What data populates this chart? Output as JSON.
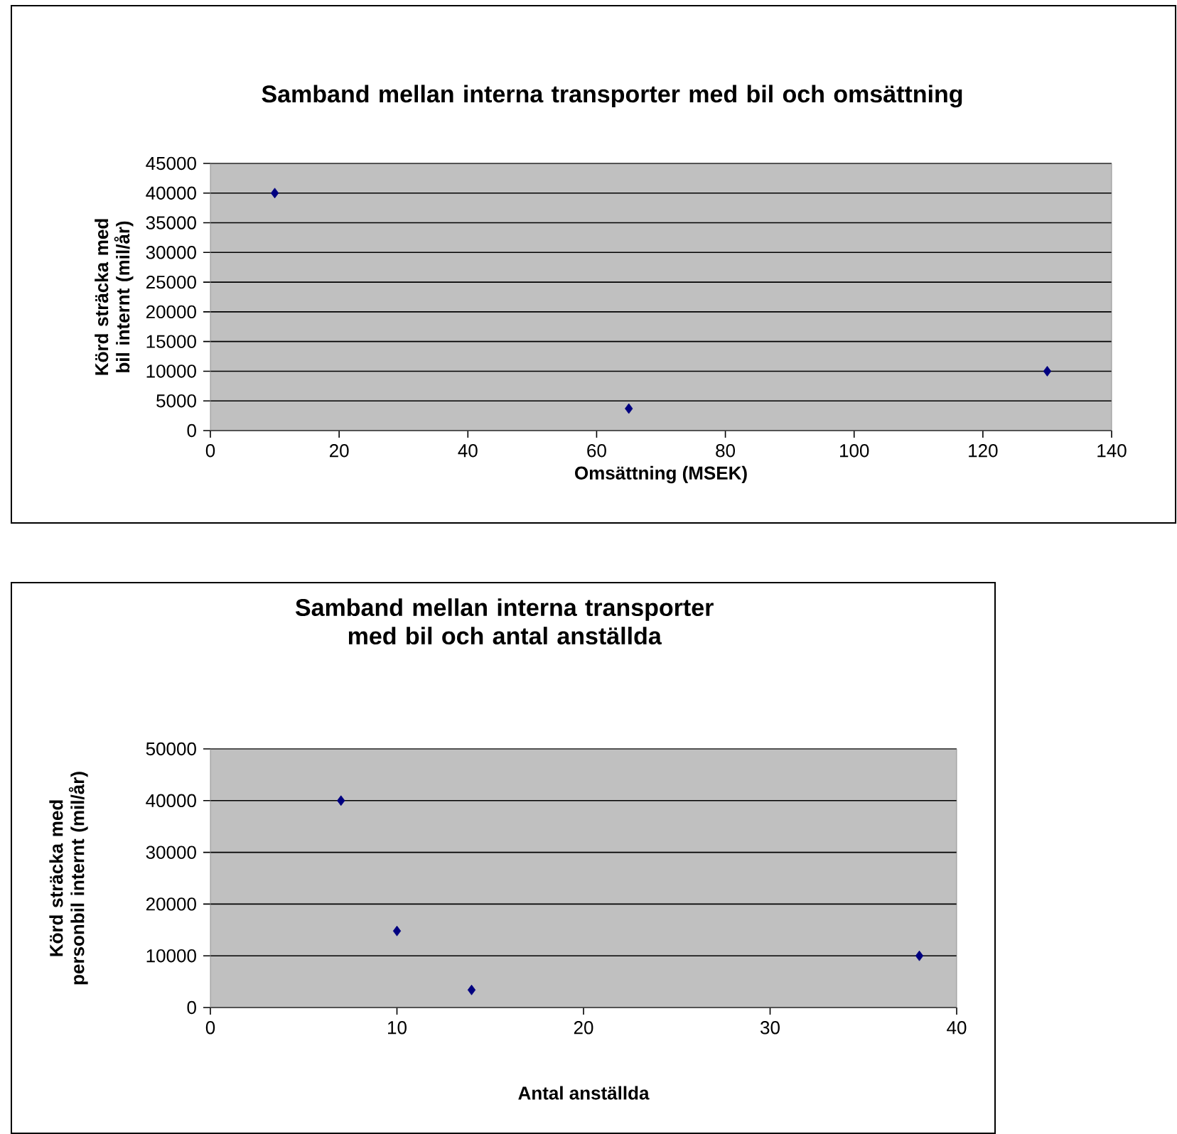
{
  "chart_data": [
    {
      "type": "scatter",
      "title": "Samband mellan interna transporter med bil och omsättning",
      "xlabel": "Omsättning (MSEK)",
      "ylabel": "Körd sträcka med bil internt (mil/år)",
      "x": [
        10,
        65,
        130
      ],
      "values": [
        40000,
        3700,
        10000
      ],
      "color": "#000080",
      "marker": "diamond",
      "xlim": [
        0,
        140
      ],
      "ylim": [
        0,
        45000
      ],
      "xticks": [
        0,
        20,
        40,
        60,
        80,
        100,
        120,
        140
      ],
      "yticks": [
        0,
        5000,
        10000,
        15000,
        20000,
        25000,
        30000,
        35000,
        40000,
        45000
      ],
      "grid": "y"
    },
    {
      "type": "scatter",
      "title": "Samband mellan interna transporter med bil och antal anställda",
      "xlabel": "Antal anställda",
      "ylabel": "Körd sträcka med personbil internt (mil/år)",
      "x": [
        7,
        10,
        14,
        38
      ],
      "values": [
        40000,
        14800,
        3400,
        10000
      ],
      "color": "#000080",
      "marker": "diamond",
      "xlim": [
        0,
        40
      ],
      "ylim": [
        0,
        50000
      ],
      "xticks": [
        0,
        10,
        20,
        30,
        40
      ],
      "yticks": [
        0,
        10000,
        20000,
        30000,
        40000,
        50000
      ],
      "grid": "y"
    }
  ]
}
